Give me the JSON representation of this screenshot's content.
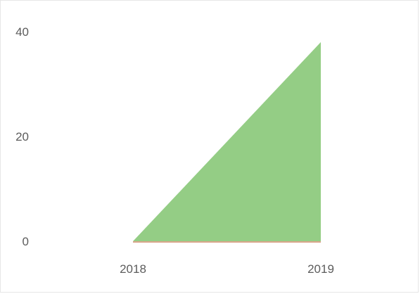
{
  "chart_data": {
    "type": "area",
    "x": [
      "2018",
      "2019"
    ],
    "series": [
      {
        "values": [
          0,
          38
        ],
        "color": "#94cd85"
      }
    ],
    "baseline_color": "#d9a68c",
    "yticks": [
      "0",
      "20",
      "40"
    ],
    "ylim": [
      0,
      40
    ],
    "grid": false,
    "legend": "none"
  }
}
